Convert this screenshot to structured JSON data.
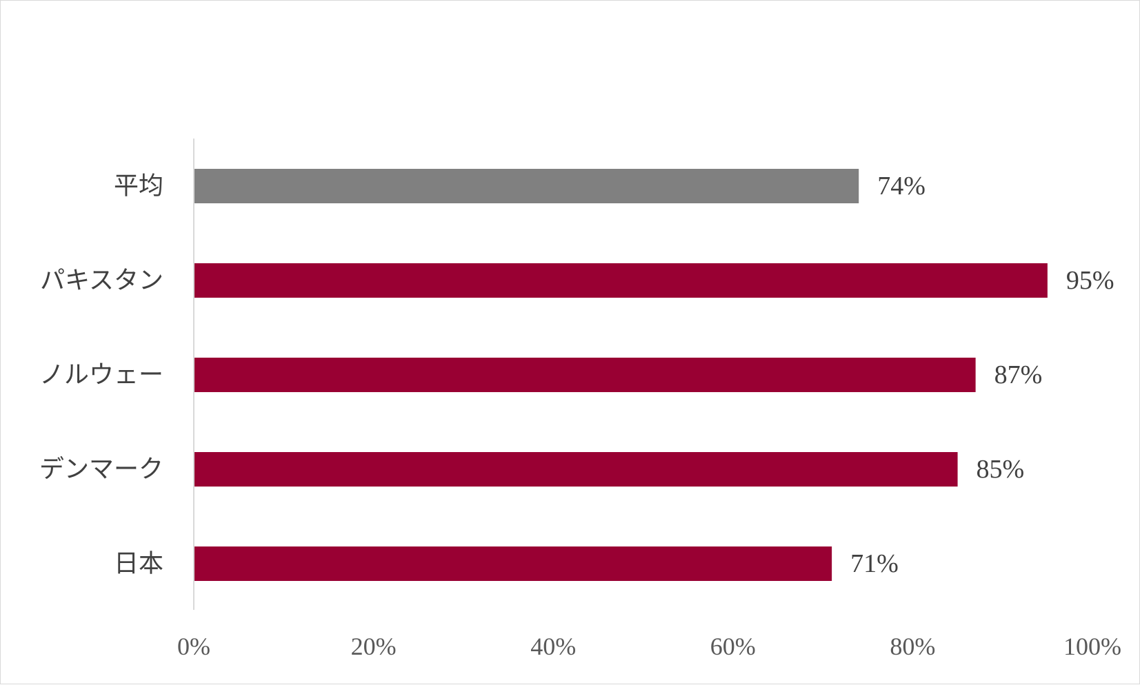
{
  "chart_data": {
    "type": "bar",
    "orientation": "horizontal",
    "categories": [
      "平均",
      "パキスタン",
      "ノルウェー",
      "デンマーク",
      "日本"
    ],
    "values": [
      74,
      95,
      87,
      85,
      71
    ],
    "value_labels": [
      "74%",
      "95%",
      "87%",
      "85%",
      "71%"
    ],
    "bar_colors": [
      "#808080",
      "#990033",
      "#990033",
      "#990033",
      "#990033"
    ],
    "xlim": [
      0,
      100
    ],
    "x_ticks": [
      0,
      20,
      40,
      60,
      80,
      100
    ],
    "x_tick_labels": [
      "0%",
      "20%",
      "40%",
      "60%",
      "80%",
      "100%"
    ],
    "grid": false,
    "legend": "none",
    "axis_color": "#d9d9d9"
  }
}
